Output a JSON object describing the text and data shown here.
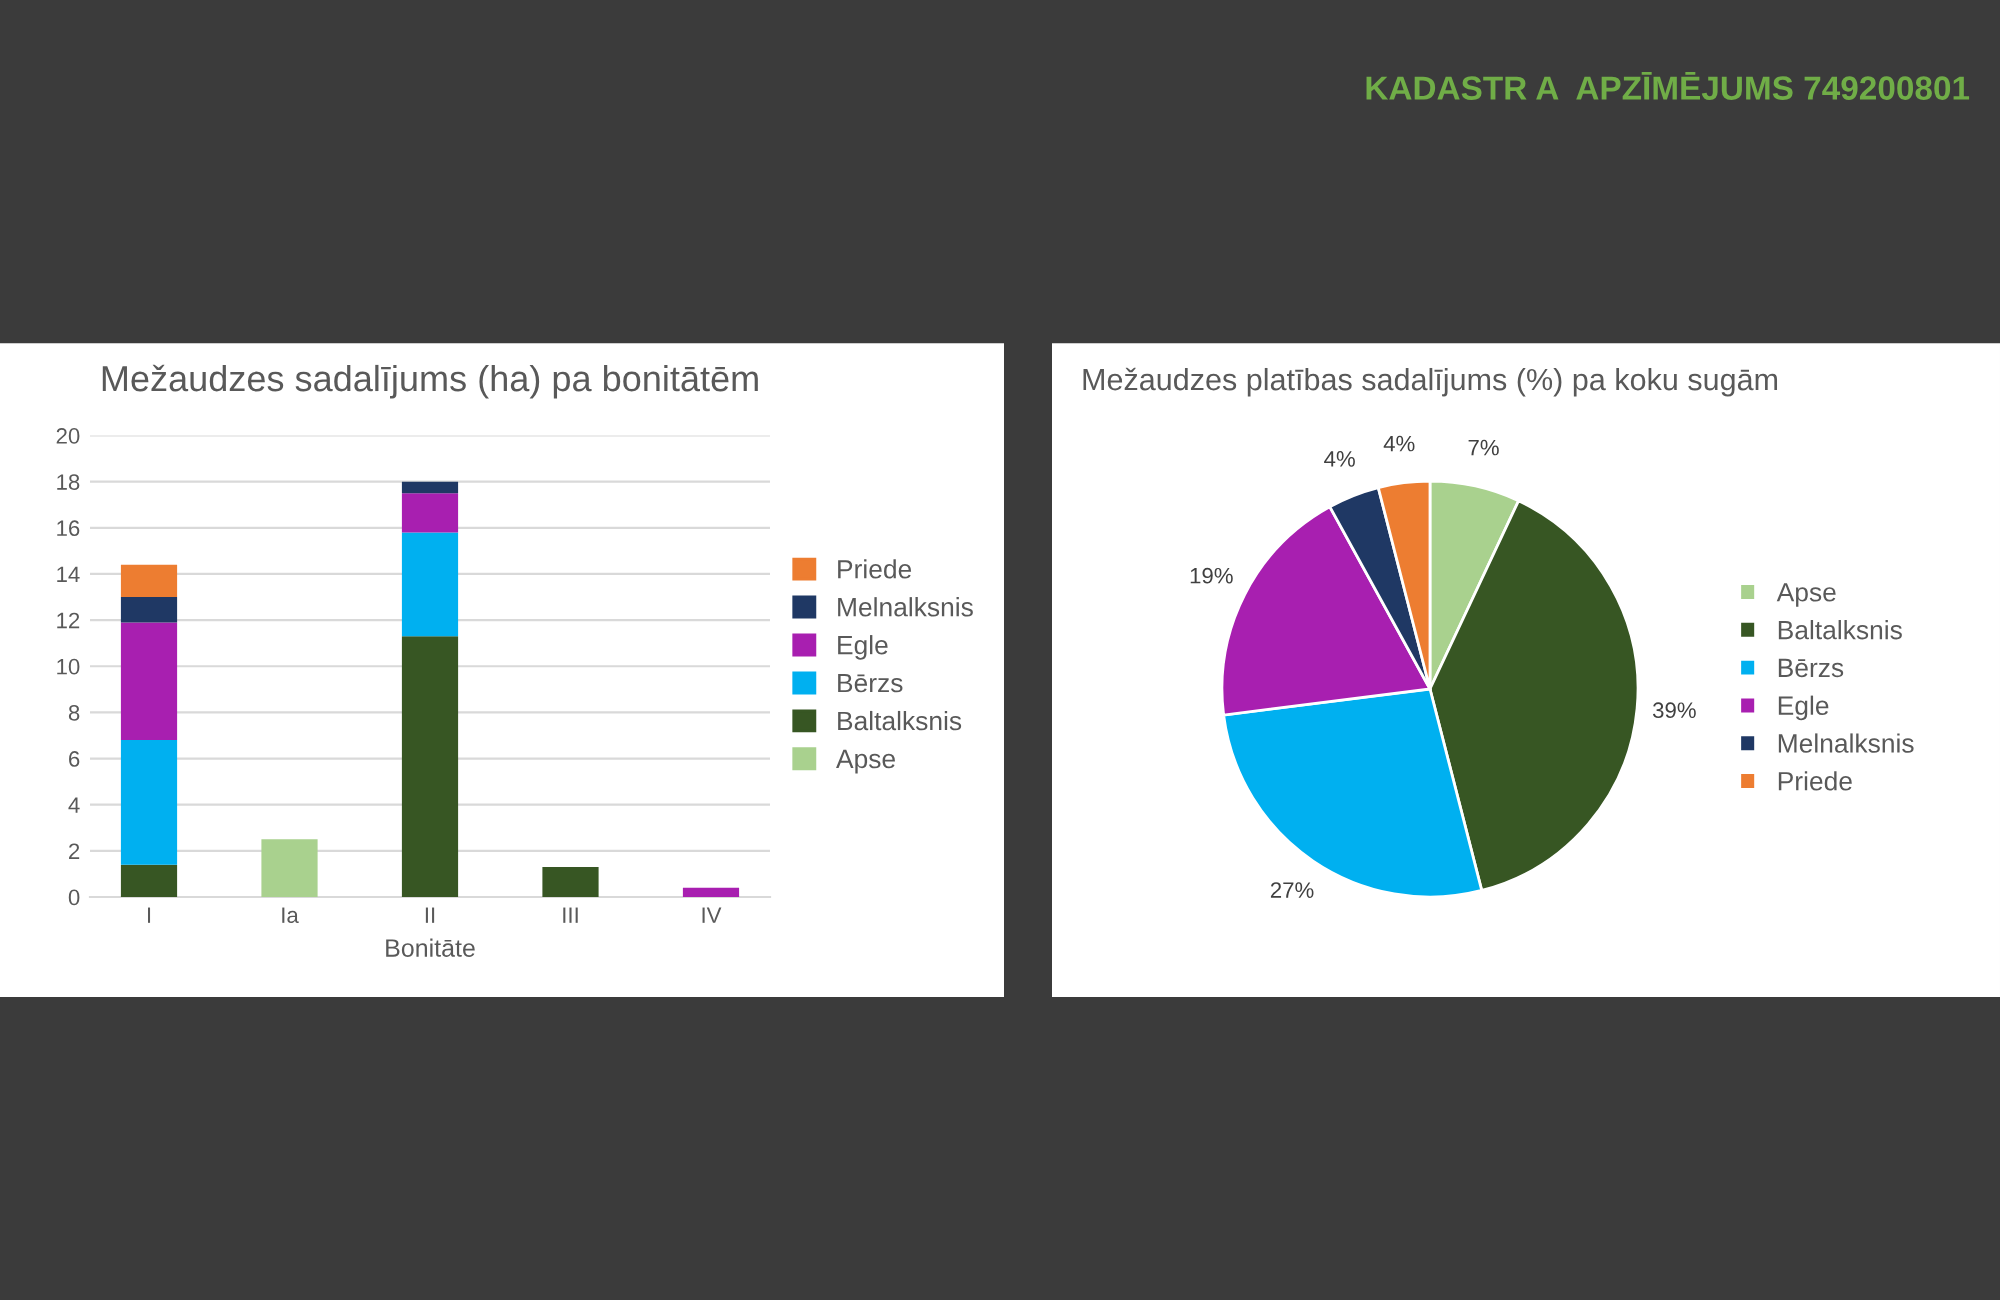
{
  "chart_data": [
    {
      "type": "bar",
      "title": "Mežaudzes sadalījums (ha) pa bonitātēm",
      "xlabel": "Bonitāte",
      "stacked": true,
      "categories": [
        "I",
        "Ia",
        "II",
        "III",
        "IV"
      ],
      "series": [
        {
          "name": "Apse",
          "color": "#a9d18e",
          "values": [
            null,
            2.5,
            null,
            null,
            null
          ]
        },
        {
          "name": "Baltalksnis",
          "color": "#375623",
          "values": [
            1.4,
            null,
            11.3,
            1.3,
            null
          ]
        },
        {
          "name": "Bērzs",
          "color": "#00b0f0",
          "values": [
            5.4,
            null,
            4.5,
            null,
            null
          ]
        },
        {
          "name": "Egle",
          "color": "#a81fb0",
          "values": [
            5.1,
            null,
            1.7,
            null,
            0.4
          ]
        },
        {
          "name": "Melnalksnis",
          "color": "#1f3864",
          "values": [
            1.1,
            null,
            0.5,
            null,
            null
          ]
        },
        {
          "name": "Priede",
          "color": "#ed7d31",
          "values": [
            1.4,
            null,
            null,
            null,
            null
          ]
        }
      ],
      "ylim": [
        0,
        20
      ],
      "yticks": [
        0,
        2,
        4,
        6,
        8,
        10,
        12,
        14,
        16,
        18,
        20
      ],
      "grid": "y",
      "legend": "right",
      "annotations": [
        "KADASTR A  APZĪMĒJUMS 749200801"
      ]
    },
    {
      "type": "pie",
      "title": "Mežaudzes platības sadalījums (%) pa koku sugām",
      "categories": [
        "Apse",
        "Baltalksnis",
        "Bērzs",
        "Egle",
        "Melnalksnis",
        "Priede"
      ],
      "values": [
        7,
        39,
        27,
        19,
        4,
        4
      ],
      "colors": [
        "#a9d18e",
        "#375623",
        "#00b0f0",
        "#a81fb0",
        "#1f3864",
        "#ed7d31"
      ],
      "value_labels": [
        "7%",
        "39%",
        "27%",
        "19%",
        "4%",
        "4%"
      ],
      "legend": "right"
    }
  ]
}
